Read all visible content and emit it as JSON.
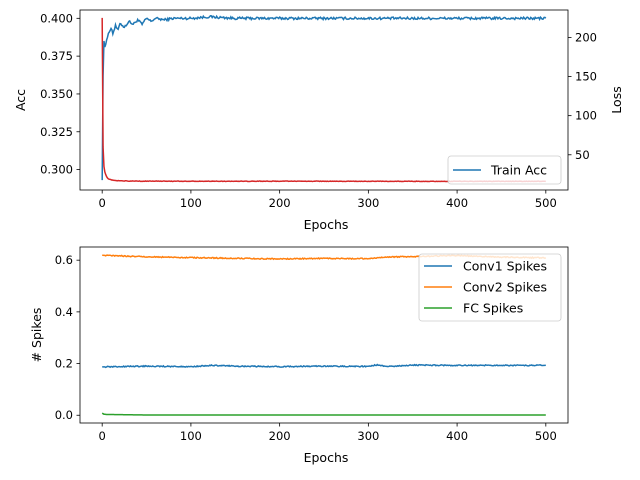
{
  "chart_data": [
    {
      "type": "line",
      "xlabel": "Epochs",
      "ylabel": "Acc",
      "y2label": "Loss",
      "xlim": [
        -25,
        525
      ],
      "ylim": [
        0.2865,
        0.4055
      ],
      "y2lim": [
        5,
        235
      ],
      "xticks": [
        0,
        100,
        200,
        300,
        400,
        500
      ],
      "yticks": [
        0.3,
        0.325,
        0.35,
        0.375,
        0.4
      ],
      "y2ticks": [
        50,
        100,
        150,
        200
      ],
      "legend_location": "lower right",
      "series": [
        {
          "name": "Train Acc",
          "axis": "left",
          "color": "#1f77b4",
          "points": [
            [
              0,
              0.293
            ],
            [
              1,
              0.362
            ],
            [
              2,
              0.385
            ],
            [
              3,
              0.381
            ],
            [
              5,
              0.386
            ],
            [
              8,
              0.391
            ],
            [
              10,
              0.394
            ],
            [
              12,
              0.39
            ],
            [
              15,
              0.395
            ],
            [
              18,
              0.392
            ],
            [
              20,
              0.397
            ],
            [
              25,
              0.394
            ],
            [
              30,
              0.398
            ],
            [
              35,
              0.396
            ],
            [
              40,
              0.399
            ],
            [
              45,
              0.396
            ],
            [
              50,
              0.4
            ],
            [
              55,
              0.398
            ],
            [
              60,
              0.4
            ],
            [
              70,
              0.399
            ],
            [
              80,
              0.4
            ],
            [
              100,
              0.4
            ],
            [
              120,
              0.401
            ],
            [
              150,
              0.4
            ],
            [
              200,
              0.4
            ],
            [
              250,
              0.4
            ],
            [
              300,
              0.4
            ],
            [
              350,
              0.4
            ],
            [
              400,
              0.4
            ],
            [
              450,
              0.4
            ],
            [
              500,
              0.4
            ]
          ],
          "noise_amplitude": 0.0008
        },
        {
          "name": "",
          "axis": "right",
          "color": "#d62728",
          "points": [
            [
              0,
              225
            ],
            [
              1,
              60
            ],
            [
              2,
              35
            ],
            [
              3,
              28
            ],
            [
              5,
              22
            ],
            [
              7,
              19
            ],
            [
              10,
              18
            ],
            [
              15,
              17
            ],
            [
              20,
              16.7
            ],
            [
              30,
              16.5
            ],
            [
              50,
              16.3
            ],
            [
              100,
              16.2
            ],
            [
              200,
              16.2
            ],
            [
              300,
              16.1
            ],
            [
              400,
              16.1
            ],
            [
              500,
              16.1
            ]
          ],
          "noise_amplitude": 0.3
        }
      ]
    },
    {
      "type": "line",
      "xlabel": "Epochs",
      "ylabel": "# Spikes",
      "xlim": [
        -25,
        525
      ],
      "ylim": [
        -0.03,
        0.651
      ],
      "xticks": [
        0,
        100,
        200,
        300,
        400,
        500
      ],
      "yticks": [
        0.0,
        0.2,
        0.4,
        0.6
      ],
      "legend_location": "upper right",
      "series": [
        {
          "name": "Conv1 Spikes",
          "color": "#1f77b4",
          "points": [
            [
              0,
              0.187
            ],
            [
              50,
              0.19
            ],
            [
              100,
              0.188
            ],
            [
              125,
              0.193
            ],
            [
              150,
              0.19
            ],
            [
              200,
              0.188
            ],
            [
              250,
              0.19
            ],
            [
              300,
              0.189
            ],
            [
              310,
              0.195
            ],
            [
              320,
              0.188
            ],
            [
              350,
              0.194
            ],
            [
              400,
              0.193
            ],
            [
              450,
              0.193
            ],
            [
              500,
              0.193
            ]
          ],
          "noise_amplitude": 0.002
        },
        {
          "name": "Conv2 Spikes",
          "color": "#ff7f0e",
          "points": [
            [
              0,
              0.619
            ],
            [
              50,
              0.613
            ],
            [
              100,
              0.61
            ],
            [
              150,
              0.607
            ],
            [
              200,
              0.605
            ],
            [
              250,
              0.607
            ],
            [
              300,
              0.606
            ],
            [
              320,
              0.612
            ],
            [
              350,
              0.614
            ],
            [
              400,
              0.618
            ],
            [
              450,
              0.612
            ],
            [
              500,
              0.609
            ]
          ],
          "noise_amplitude": 0.002
        },
        {
          "name": "FC Spikes",
          "color": "#2ca02c",
          "points": [
            [
              0,
              0.008
            ],
            [
              2,
              0.004
            ],
            [
              5,
              0.003
            ],
            [
              50,
              0.001
            ],
            [
              500,
              0.001
            ]
          ],
          "noise_amplitude": 0.0
        }
      ]
    }
  ]
}
